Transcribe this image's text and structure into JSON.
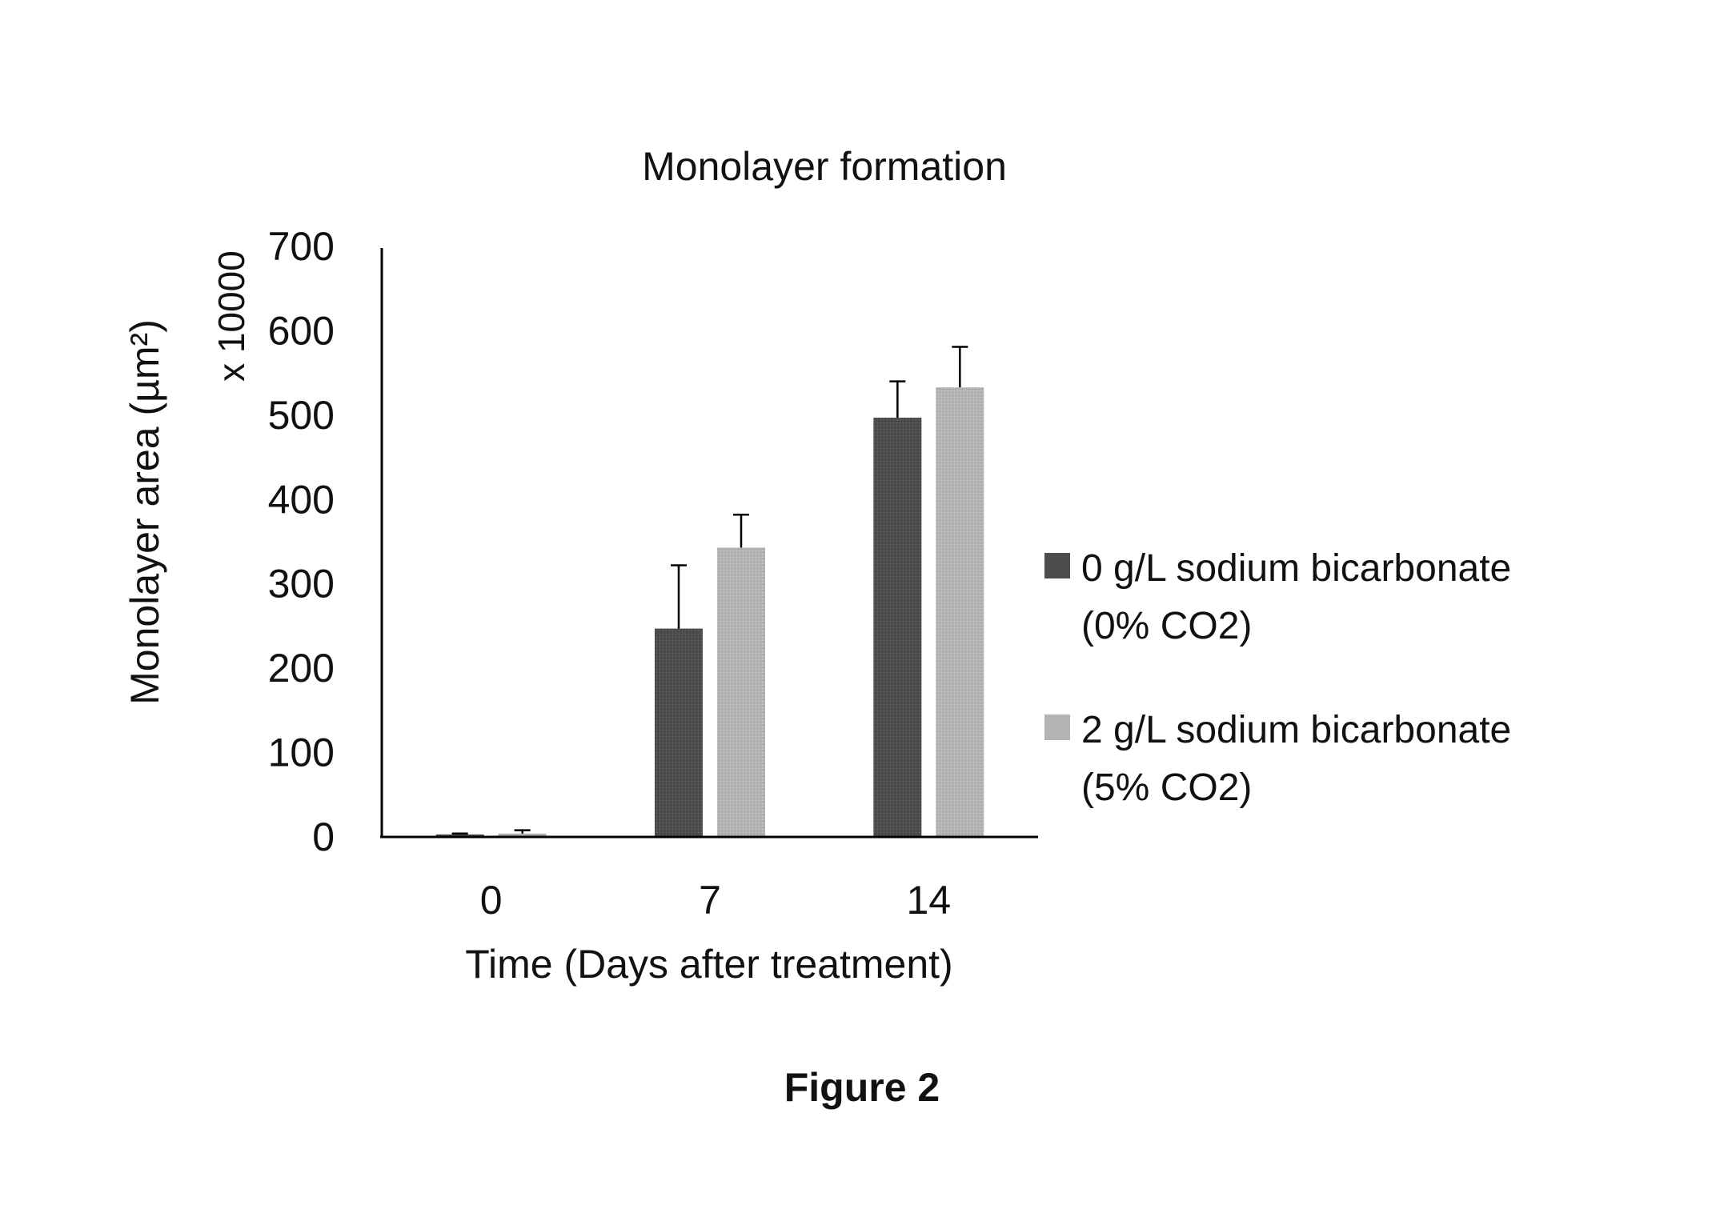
{
  "figure_caption": "Figure 2",
  "chart_data": {
    "type": "bar",
    "title": "Monolayer formation",
    "xlabel": "Time (Days after treatment)",
    "ylabel": "Monolayer area (µm²)",
    "y_multiplier": "x 10000",
    "categories": [
      "0",
      "7",
      "14"
    ],
    "ylim": [
      0,
      700
    ],
    "yticks": [
      0,
      100,
      200,
      300,
      400,
      500,
      600,
      700
    ],
    "grid": false,
    "legend_position": "right",
    "series": [
      {
        "name": "0 g/L sodium bicarbonate (0% CO2)",
        "legend_label": "0 g/L sodium bicarbonate\n(0% CO2)",
        "color": "#4d4d4d",
        "values": [
          3,
          247,
          497
        ],
        "errors": [
          1,
          75,
          43
        ]
      },
      {
        "name": "2 g/L sodium bicarbonate (5% CO2)",
        "legend_label": "2 g/L sodium bicarbonate\n(5% CO2)",
        "color": "#b3b3b3",
        "values": [
          4,
          343,
          533
        ],
        "errors": [
          4,
          39,
          48
        ]
      }
    ]
  }
}
